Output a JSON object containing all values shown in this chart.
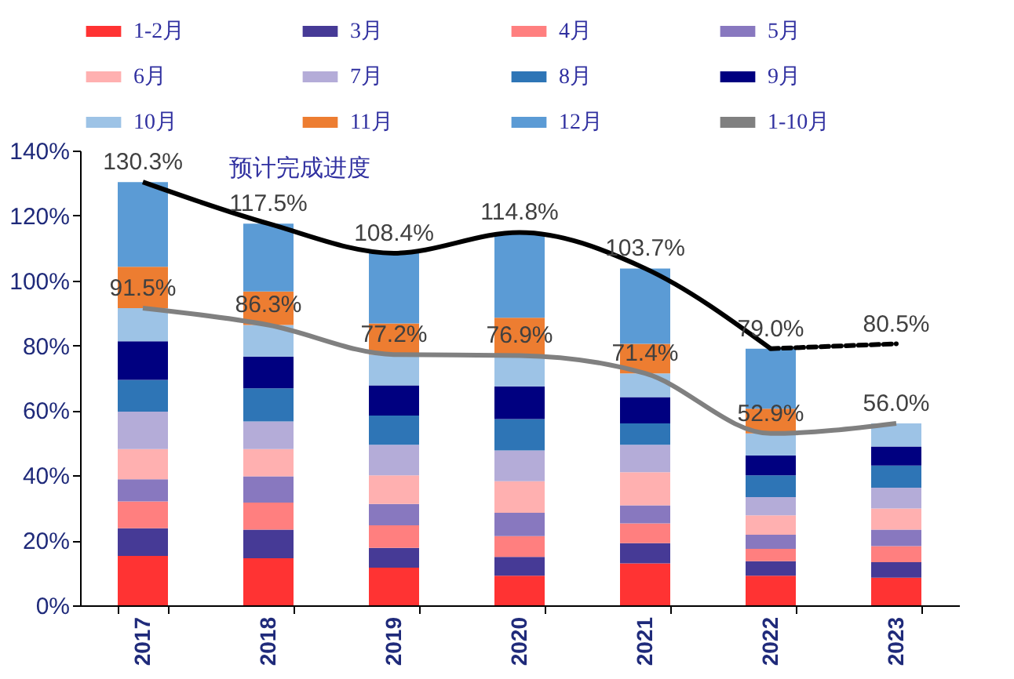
{
  "chart_data": {
    "type": "bar",
    "stacked": true,
    "legend": "top",
    "grid": false,
    "categories": [
      "2017",
      "2018",
      "2019",
      "2020",
      "2021",
      "2022",
      "2023"
    ],
    "ylim": [
      0,
      140
    ],
    "yticks": [
      {
        "value": 0,
        "label": "0%"
      },
      {
        "value": 20,
        "label": "20%"
      },
      {
        "value": 40,
        "label": "40%"
      },
      {
        "value": 60,
        "label": "60%"
      },
      {
        "value": 80,
        "label": "80%"
      },
      {
        "value": 100,
        "label": "100%"
      },
      {
        "value": 120,
        "label": "120%"
      },
      {
        "value": 140,
        "label": "140%"
      }
    ],
    "series": [
      {
        "name": "1-2月",
        "color": "#ff3333",
        "values": [
          15.2,
          14.5,
          11.6,
          9.1,
          12.9,
          9.1,
          8.5
        ]
      },
      {
        "name": "3月",
        "color": "#463a96",
        "values": [
          8.5,
          8.8,
          6.1,
          5.8,
          6.2,
          4.5,
          4.8
        ]
      },
      {
        "name": "4月",
        "color": "#ff7f7f",
        "values": [
          8.3,
          8.3,
          6.9,
          6.4,
          6.1,
          3.8,
          4.9
        ]
      },
      {
        "name": "5月",
        "color": "#8878bf",
        "values": [
          6.8,
          8.1,
          6.6,
          7.2,
          5.6,
          4.3,
          5.1
        ]
      },
      {
        "name": "6月",
        "color": "#ffb0b0",
        "values": [
          9.3,
          8.4,
          8.8,
          9.7,
          10.2,
          6.0,
          6.5
        ]
      },
      {
        "name": "7月",
        "color": "#b4acd8",
        "values": [
          11.5,
          8.5,
          9.4,
          9.5,
          8.4,
          5.6,
          6.4
        ]
      },
      {
        "name": "8月",
        "color": "#2e75b6",
        "values": [
          9.8,
          10.2,
          9.0,
          9.6,
          6.6,
          6.7,
          6.8
        ]
      },
      {
        "name": "9月",
        "color": "#000080",
        "values": [
          11.9,
          9.8,
          9.3,
          10.1,
          8.1,
          6.1,
          5.9
        ]
      },
      {
        "name": "10月",
        "color": "#9dc3e6",
        "values": [
          10.2,
          9.7,
          9.5,
          9.5,
          7.3,
          6.8,
          7.1
        ]
      },
      {
        "name": "11月",
        "color": "#ed7d31",
        "values": [
          12.7,
          10.3,
          9.6,
          11.6,
          9.1,
          7.6,
          null
        ]
      },
      {
        "name": "12月",
        "color": "#5b9bd5",
        "values": [
          26.1,
          20.9,
          21.6,
          26.3,
          23.2,
          18.5,
          null
        ]
      },
      {
        "name": "1-10月",
        "type": "line",
        "color": "#808080",
        "values": [
          91.5,
          86.3,
          77.2,
          76.9,
          71.4,
          52.9,
          56.0
        ],
        "value_labels": [
          "91.5%",
          "86.3%",
          "77.2%",
          "76.9%",
          "71.4%",
          "52.9%",
          "56.0%"
        ]
      },
      {
        "type": "line",
        "color": "#000000",
        "values": [
          130.3,
          117.5,
          108.4,
          114.8,
          103.7,
          79.0,
          null
        ],
        "value_labels": [
          "130.3%",
          "117.5%",
          "108.4%",
          "114.8%",
          "103.7%",
          "79.0%",
          null
        ]
      },
      {
        "type": "line",
        "color": "#000000",
        "line_style": "dashed",
        "values": [
          null,
          null,
          null,
          null,
          null,
          79.0,
          80.5
        ],
        "value_labels": [
          null,
          null,
          null,
          null,
          null,
          null,
          "80.5%"
        ]
      }
    ],
    "annotations": [
      "预计完成进度"
    ]
  }
}
